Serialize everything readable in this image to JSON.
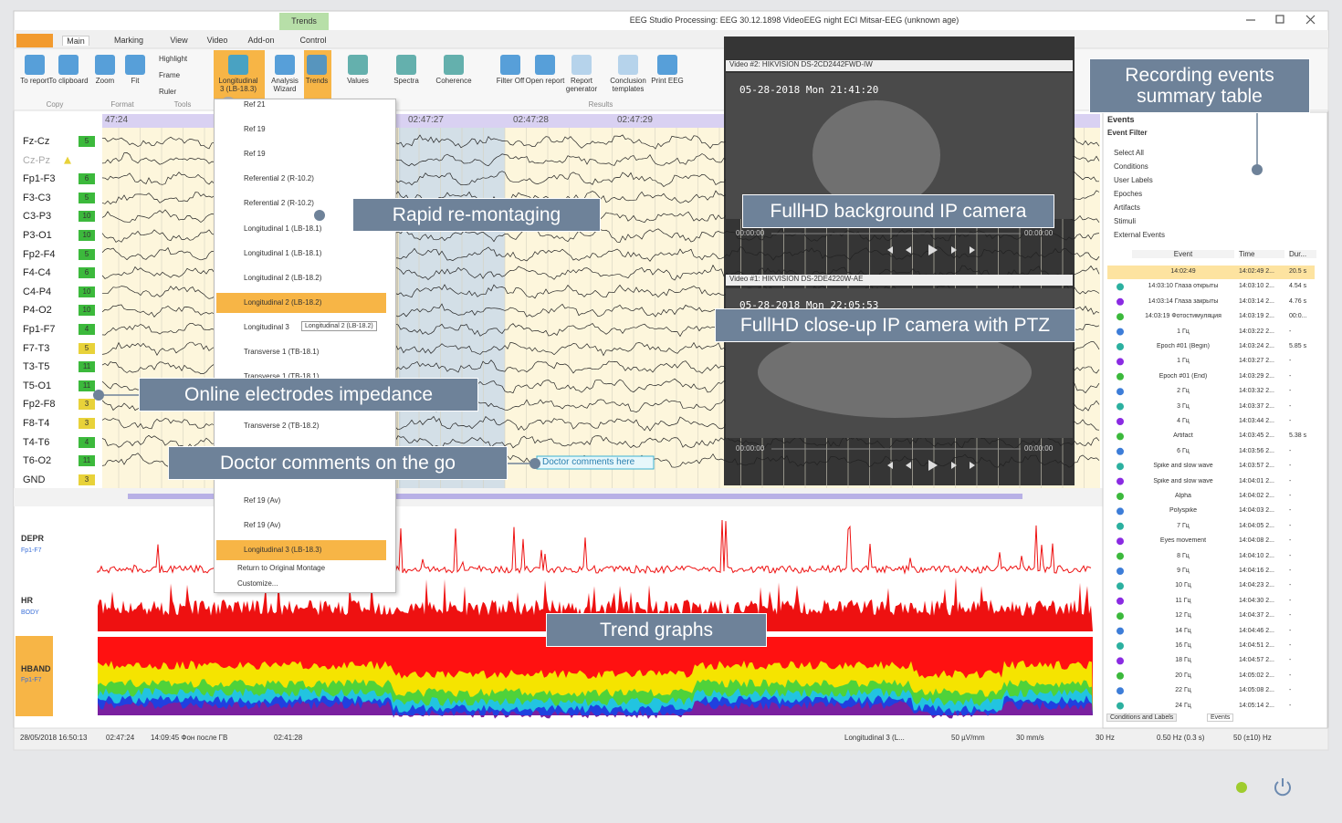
{
  "window": {
    "title": "EEG Studio Processing: EEG 30.12.1898 VideoEEG night ECI Mitsar-EEG (unknown age)",
    "context_tab": "Trends"
  },
  "tabs": [
    "Main",
    "Marking",
    "View",
    "Video",
    "Add-on",
    "Control"
  ],
  "ribbon": {
    "buttons": [
      "To report",
      "To clipboard",
      "Zoom",
      "Fit",
      "Highlight",
      "Frame",
      "Ruler",
      "Longitudinal 3 (LB-18.3)",
      "Analysis Wizard",
      "Trends",
      "Values",
      "Spectra",
      "Coherence",
      "Filter Off",
      "Open report",
      "Report generator",
      "Conclusion templates",
      "Print EEG"
    ],
    "groups": [
      "Copy",
      "Format",
      "Tools",
      "Results"
    ]
  },
  "eeg": {
    "time_labels": [
      "47:24",
      "02:47:27",
      "02:47:28",
      "02:47:29"
    ],
    "channels": [
      "Fz-Cz",
      "Cz-Pz",
      "Fp1-F3",
      "F3-C3",
      "C3-P3",
      "P3-O1",
      "Fp2-F4",
      "F4-C4",
      "C4-P4",
      "P4-O2",
      "Fp1-F7",
      "F7-T3",
      "T3-T5",
      "T5-O1",
      "Fp2-F8",
      "F8-T4",
      "T4-T6",
      "T6-O2",
      "GND"
    ],
    "impedance": [
      {
        "value": "5",
        "color": "#3cb93c"
      },
      null,
      {
        "value": "6",
        "color": "#3cb93c"
      },
      {
        "value": "5",
        "color": "#3cb93c"
      },
      {
        "value": "10",
        "color": "#3cb93c"
      },
      {
        "value": "10",
        "color": "#3cb93c"
      },
      {
        "value": "5",
        "color": "#3cb93c"
      },
      {
        "value": "6",
        "color": "#3cb93c"
      },
      {
        "value": "10",
        "color": "#3cb93c"
      },
      {
        "value": "10",
        "color": "#3cb93c"
      },
      {
        "value": "4",
        "color": "#3cb93c"
      },
      {
        "value": "5",
        "color": "#e8d23a"
      },
      {
        "value": "11",
        "color": "#3cb93c"
      },
      {
        "value": "11",
        "color": "#3cb93c"
      },
      {
        "value": "3",
        "color": "#e8d23a"
      },
      {
        "value": "3",
        "color": "#e8d23a"
      },
      {
        "value": "4",
        "color": "#3cb93c"
      },
      {
        "value": "11",
        "color": "#3cb93c"
      },
      {
        "value": "3",
        "color": "#e8d23a"
      }
    ],
    "comment": "Doctor comments here"
  },
  "montage_menu": {
    "items": [
      "Ref 21",
      "Ref 19",
      "Ref 19",
      "Referential 2 (R-10.2)",
      "Referential 2 (R-10.2)",
      "Longitudinal 1 (LB-18.1)",
      "Longitudinal 1 (LB-18.1)",
      "Longitudinal 2 (LB-18.2)",
      "Longitudinal 2 (LB-18.2)",
      "Longitudinal 3",
      "Transverse 1 (TB-18.1)",
      "Transverse 1 (TB-18.1)",
      null,
      "Transverse 2 (TB-18.2)",
      null,
      null,
      "Ref 19 (Av)",
      "Ref 19 (Av)",
      "Longitudinal 3 (LB-18.3)"
    ],
    "tooltip": "Longitudinal 2 (LB-18.2)",
    "footer": [
      "Return to Original Montage",
      "Customize..."
    ]
  },
  "videos": [
    {
      "title": "Video #2: HIKVISION DS-2CD2442FWD-IW",
      "timestamp": "05-28-2018 Mon 21:41:20",
      "start": "00:00:00",
      "end": "00:00:00"
    },
    {
      "title": "Video #1: HIKVISION DS-2DE4220W-AE",
      "timestamp": "05-28-2018 Mon 22:05:53",
      "start": "00:00:00",
      "end": "00:00:00"
    }
  ],
  "trends": {
    "labels": [
      [
        "DEPR",
        "Fp1-F7"
      ],
      [
        "HR",
        "BODY"
      ],
      [
        "HBAND",
        "Fp1-F7"
      ]
    ]
  },
  "events": {
    "title": "Events",
    "filter_title": "Event Filter",
    "filters": [
      "Select All",
      "Conditions",
      "User Labels",
      "Epoches",
      "Artifacts",
      "Stimuli",
      "External Events"
    ],
    "columns": [
      "Event",
      "Time",
      "Dur..."
    ],
    "rows": [
      [
        "14:02:49",
        "14:02:49 2...",
        "20.5 s"
      ],
      [
        "14:03:10 Глаза открыты",
        "14:03:10 2...",
        "4.54 s"
      ],
      [
        "14:03:14 Глаза закрыты",
        "14:03:14 2...",
        "4.76 s"
      ],
      [
        "14:03:19 Фотостимуляция",
        "14:03:19 2...",
        "00:0..."
      ],
      [
        "1 Гц",
        "14:03:22 2...",
        "-"
      ],
      [
        "Epoch #01 (Begin)",
        "14:03:24 2...",
        "5.85 s"
      ],
      [
        "1 Гц",
        "14:03:27 2...",
        "-"
      ],
      [
        "Epoch #01 (End)",
        "14:03:29 2...",
        "-"
      ],
      [
        "2 Гц",
        "14:03:32 2...",
        "-"
      ],
      [
        "3 Гц",
        "14:03:37 2...",
        "-"
      ],
      [
        "4 Гц",
        "14:03:44 2...",
        "-"
      ],
      [
        "Artifact",
        "14:03:45 2...",
        "5.38 s"
      ],
      [
        "6 Гц",
        "14:03:56 2...",
        "-"
      ],
      [
        "Spike and slow wave",
        "14:03:57 2...",
        "-"
      ],
      [
        "Spike and slow wave",
        "14:04:01 2...",
        "-"
      ],
      [
        "Alpha",
        "14:04:02 2...",
        "-"
      ],
      [
        "Polyspike",
        "14:04:03 2...",
        "-"
      ],
      [
        "7 Гц",
        "14:04:05 2...",
        "-"
      ],
      [
        "Eyes movement",
        "14:04:08 2...",
        "-"
      ],
      [
        "8 Гц",
        "14:04:10 2...",
        "-"
      ],
      [
        "9 Гц",
        "14:04:16 2...",
        "-"
      ],
      [
        "10 Гц",
        "14:04:23 2...",
        "-"
      ],
      [
        "11 Гц",
        "14:04:30 2...",
        "-"
      ],
      [
        "12 Гц",
        "14:04:37 2...",
        "-"
      ],
      [
        "14 Гц",
        "14:04:46 2...",
        "-"
      ],
      [
        "16 Гц",
        "14:04:51 2...",
        "-"
      ],
      [
        "18 Гц",
        "14:04:57 2...",
        "-"
      ],
      [
        "20 Гц",
        "14:05:02 2...",
        "-"
      ],
      [
        "22 Гц",
        "14:05:08 2...",
        "-"
      ],
      [
        "24 Гц",
        "14:05:14 2...",
        "-"
      ]
    ],
    "bottom_tabs": [
      "Conditions and Labels",
      "Events"
    ]
  },
  "status_bar": [
    "28/05/2018 16:50:13",
    "02:47:24",
    "14:09:45 Фон после ГВ",
    "02:41:28",
    "Longitudinal 3 (L...",
    "50 µV/mm",
    "30 mm/s",
    "30 Hz",
    "0.50 Hz (0.3 s)",
    "50 (±10) Hz"
  ],
  "callouts": [
    "Recording events summary table",
    "Rapid re-montaging",
    "FullHD background IP camera",
    "FullHD close-up IP camera with PTZ",
    "Online electrodes impedance",
    "Doctor comments on the go",
    "Trend graphs"
  ]
}
